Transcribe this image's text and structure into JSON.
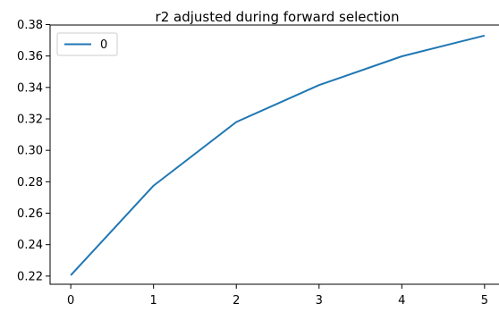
{
  "chart_data": {
    "type": "line",
    "title": "r2 adjusted during forward selection",
    "xlabel": "",
    "ylabel": "",
    "x": [
      0,
      1,
      2,
      3,
      4,
      5
    ],
    "series": [
      {
        "name": "0",
        "values": [
          0.2205,
          0.2775,
          0.318,
          0.3415,
          0.3598,
          0.373
        ],
        "color": "#1f77b4"
      }
    ],
    "xlim": [
      -0.25,
      5.25
    ],
    "ylim": [
      0.2148,
      0.3797
    ],
    "xticks": [
      0,
      1,
      2,
      3,
      4,
      5
    ],
    "xtick_labels": [
      "0",
      "1",
      "2",
      "3",
      "4",
      "5"
    ],
    "yticks": [
      0.22,
      0.24,
      0.26,
      0.28,
      0.3,
      0.32,
      0.34,
      0.36,
      0.38
    ],
    "ytick_labels": [
      "0.22",
      "0.24",
      "0.26",
      "0.28",
      "0.30",
      "0.32",
      "0.34",
      "0.36",
      "0.38"
    ],
    "grid": false,
    "legend": {
      "placement": "upper-left",
      "entries": [
        {
          "label": "0",
          "color": "#1f77b4"
        }
      ]
    }
  }
}
